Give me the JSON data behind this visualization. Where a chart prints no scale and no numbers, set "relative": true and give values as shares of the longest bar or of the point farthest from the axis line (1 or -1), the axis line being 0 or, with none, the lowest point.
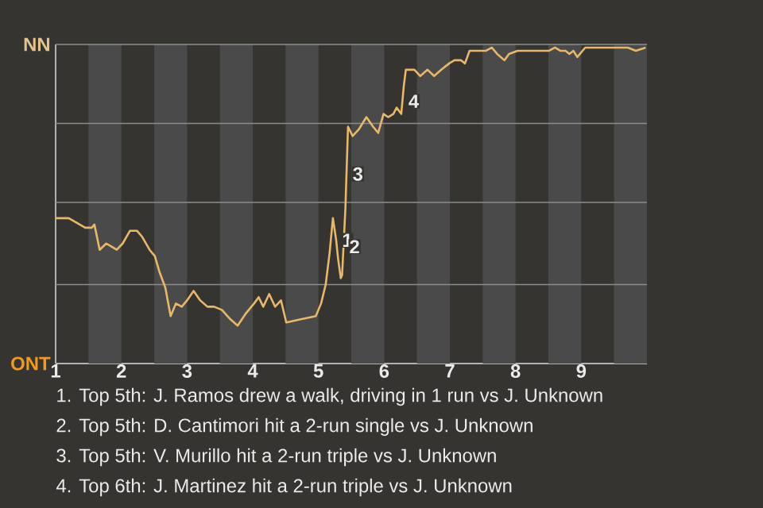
{
  "chart_data": {
    "type": "line",
    "relative": true,
    "x": [
      1.0,
      1.2,
      1.45,
      1.55,
      1.59,
      1.67,
      1.77,
      1.85,
      1.93,
      2.02,
      2.13,
      2.24,
      2.32,
      2.43,
      2.51,
      2.58,
      2.67,
      2.75,
      2.83,
      2.92,
      3.0,
      3.1,
      3.2,
      3.31,
      3.41,
      3.53,
      3.66,
      3.77,
      3.9,
      4.02,
      4.09,
      4.16,
      4.25,
      4.34,
      4.43,
      4.51,
      4.73,
      4.96,
      5.04,
      5.11,
      5.17,
      5.22,
      5.27,
      5.3,
      5.34,
      5.36,
      5.41,
      5.45,
      5.52,
      5.61,
      5.73,
      5.83,
      5.91,
      5.99,
      6.06,
      6.14,
      6.19,
      6.26,
      6.3,
      6.33,
      6.41,
      6.46,
      6.55,
      6.66,
      6.76,
      6.87,
      6.99,
      7.07,
      7.17,
      7.23,
      7.3,
      7.41,
      7.55,
      7.64,
      7.72,
      7.83,
      7.9,
      8.03,
      8.2,
      8.38,
      8.51,
      8.6,
      8.68,
      8.76,
      8.82,
      8.88,
      8.94,
      9.06,
      9.44,
      9.71,
      9.83,
      9.98
    ],
    "series": [
      {
        "color": "#e8b86a",
        "values": [
          0.46,
          0.46,
          0.43,
          0.43,
          0.44,
          0.36,
          0.38,
          0.37,
          0.36,
          0.38,
          0.42,
          0.42,
          0.4,
          0.36,
          0.34,
          0.29,
          0.24,
          0.15,
          0.19,
          0.18,
          0.2,
          0.23,
          0.2,
          0.18,
          0.18,
          0.17,
          0.14,
          0.12,
          0.16,
          0.19,
          0.21,
          0.18,
          0.22,
          0.18,
          0.2,
          0.13,
          0.14,
          0.15,
          0.19,
          0.25,
          0.35,
          0.46,
          0.39,
          0.33,
          0.27,
          0.28,
          0.49,
          0.75,
          0.72,
          0.74,
          0.78,
          0.75,
          0.73,
          0.79,
          0.78,
          0.79,
          0.81,
          0.79,
          0.88,
          0.93,
          0.93,
          0.93,
          0.91,
          0.93,
          0.91,
          0.93,
          0.95,
          0.96,
          0.96,
          0.95,
          0.99,
          0.99,
          0.99,
          1,
          0.98,
          0.96,
          0.98,
          0.99,
          0.99,
          0.99,
          0.99,
          1,
          0.99,
          0.99,
          0.98,
          0.99,
          0.97,
          1,
          1,
          1,
          0.99,
          1
        ]
      }
    ],
    "xlim": [
      1,
      10
    ],
    "xticks": [
      1,
      2,
      3,
      4,
      5,
      6,
      7,
      8,
      9
    ],
    "ref_lines": [
      {
        "axis": "y",
        "value": 0.25,
        "color": "#8c8c8c"
      },
      {
        "axis": "y",
        "value": 0.51,
        "color": "#8c8c8c"
      },
      {
        "axis": "y",
        "value": 0.76,
        "color": "#8c8c8c"
      },
      {
        "axis": "y",
        "value": 1.01,
        "color": "#8c8c8c"
      }
    ],
    "bands": [
      {
        "axis": "x",
        "from": 1.5,
        "to": 2,
        "color": "#4a4a4a"
      },
      {
        "axis": "x",
        "from": 2.5,
        "to": 3,
        "color": "#4a4a4a"
      },
      {
        "axis": "x",
        "from": 3.5,
        "to": 4,
        "color": "#4a4a4a"
      },
      {
        "axis": "x",
        "from": 4.5,
        "to": 5,
        "color": "#4a4a4a"
      },
      {
        "axis": "x",
        "from": 5.5,
        "to": 6,
        "color": "#4a4a4a"
      },
      {
        "axis": "x",
        "from": 6.5,
        "to": 7,
        "color": "#4a4a4a"
      },
      {
        "axis": "x",
        "from": 7.5,
        "to": 8,
        "color": "#4a4a4a"
      },
      {
        "axis": "x",
        "from": 8.5,
        "to": 9,
        "color": "#4a4a4a"
      },
      {
        "axis": "x",
        "from": 9.5,
        "to": 10,
        "color": "#4a4a4a"
      }
    ],
    "annotations": [
      {
        "text": "1",
        "x": 5.27,
        "y": 0.39
      },
      {
        "text": "2",
        "x": 5.38,
        "y": 0.37
      },
      {
        "text": "3",
        "x": 5.43,
        "y": 0.6
      },
      {
        "text": "4",
        "x": 6.28,
        "y": 0.83
      },
      "ONT",
      "NN",
      "1. Top 5th: J. Ramos drew a walk, driving in 1 run vs J. Unknown",
      "2. Top 5th: D. Cantimori hit a 2-run single vs J. Unknown",
      "3. Top 5th: V. Murillo hit a 2-run triple vs J. Unknown",
      "4. Top 6th: J. Martinez hit a 2-run triple vs J. Unknown"
    ]
  }
}
